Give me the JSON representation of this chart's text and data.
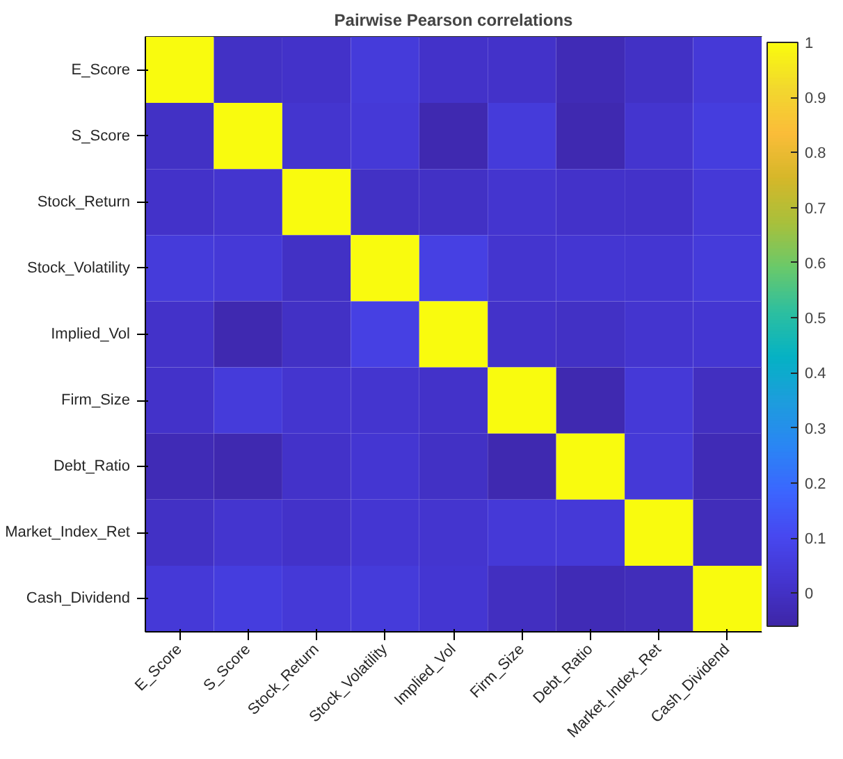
{
  "chart_data": {
    "type": "heatmap",
    "title": "Pairwise Pearson correlations",
    "categories": [
      "E_Score",
      "S_Score",
      "Stock_Return",
      "Stock_Volatility",
      "Implied_Vol",
      "Firm_Size",
      "Debt_Ratio",
      "Market_Index_Ret",
      "Cash_Dividend"
    ],
    "y_categories": [
      "E_Score",
      "S_Score",
      "Stock_Return",
      "Stock_Volatility",
      "Implied_Vol",
      "Firm_Size",
      "Debt_Ratio",
      "Market_Index_Ret",
      "Cash_Dividend"
    ],
    "cells": [
      [
        1,
        0.0,
        0.01,
        0.05,
        0.01,
        0.01,
        -0.03,
        0.0,
        0.04
      ],
      [
        0.0,
        1,
        0.02,
        0.04,
        -0.04,
        0.05,
        -0.04,
        0.02,
        0.06
      ],
      [
        0.01,
        0.02,
        1,
        0.0,
        0.0,
        0.02,
        0.01,
        0.01,
        0.04
      ],
      [
        0.05,
        0.04,
        0.0,
        1,
        0.07,
        0.02,
        0.03,
        0.03,
        0.05
      ],
      [
        0.01,
        -0.04,
        0.0,
        0.07,
        1,
        0.01,
        0.0,
        0.02,
        0.03
      ],
      [
        0.01,
        0.05,
        0.02,
        0.02,
        0.01,
        1,
        -0.04,
        0.04,
        -0.01
      ],
      [
        -0.03,
        -0.04,
        0.01,
        0.03,
        0.0,
        -0.04,
        1,
        0.04,
        -0.03
      ],
      [
        0.0,
        0.02,
        0.01,
        0.03,
        0.02,
        0.04,
        0.04,
        1,
        -0.02
      ],
      [
        0.04,
        0.06,
        0.04,
        0.05,
        0.03,
        -0.01,
        -0.03,
        -0.02,
        1
      ]
    ],
    "clim": [
      -0.06,
      1
    ],
    "cticks": [
      0,
      0.1,
      0.2,
      0.3,
      0.4,
      0.5,
      0.6,
      0.7,
      0.8,
      0.9,
      1
    ]
  }
}
